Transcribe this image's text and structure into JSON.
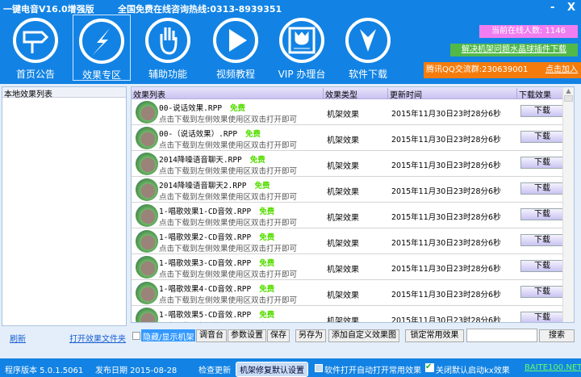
{
  "title": "一键电音V16.0增强版",
  "hotline": "全国免费在线咨询热线:0313-8939351",
  "window_controls": {
    "minimize": "-",
    "close": "X"
  },
  "nav": [
    {
      "label": "首页公告",
      "icon": "signpost-icon"
    },
    {
      "label": "效果专区",
      "icon": "lightning-icon"
    },
    {
      "label": "辅助功能",
      "icon": "hand-icon"
    },
    {
      "label": "视频教程",
      "icon": "play-icon"
    },
    {
      "label": "VIP 办理台",
      "icon": "tulip-icon"
    },
    {
      "label": "软件下载",
      "icon": "download-arrow-icon"
    }
  ],
  "online": "当前在线人数: 1146",
  "plugin_link": "解决机架问题水晶球插件下载",
  "qq_group": "腾讯QQ交流群:230639001",
  "join": "点击加入",
  "left": {
    "header": "本地效果列表",
    "refresh": "刷新",
    "open_folder": "打开效果文件夹"
  },
  "list": {
    "columns": [
      "效果列表",
      "效果类型",
      "更新时间",
      "下载效果"
    ],
    "rows": [
      {
        "name": "00-说话效果.RPP",
        "badge": "免费",
        "desc": "点击下载到左侧效果使用区双击打开即可",
        "type": "机架效果",
        "time": "2015年11月30日23时28分6秒",
        "action": "下载"
      },
      {
        "name": "00-（说话效果）.RPP",
        "badge": "免费",
        "desc": "点击下载到左侧效果使用区双击打开即可",
        "type": "机架效果",
        "time": "2015年11月30日23时28分6秒",
        "action": "下载"
      },
      {
        "name": "2014降噪语音聊天.RPP",
        "badge": "免费",
        "desc": "点击下载到左侧效果使用区双击打开即可",
        "type": "机架效果",
        "time": "2015年11月30日23时28分6秒",
        "action": "下载"
      },
      {
        "name": "2014降噪语音聊天2.RPP",
        "badge": "免费",
        "desc": "点击下载到左侧效果使用区双击打开即可",
        "type": "机架效果",
        "time": "2015年11月30日23时28分6秒",
        "action": "下载"
      },
      {
        "name": "1-唱歌效果1-CD音效.RPP",
        "badge": "免费",
        "desc": "点击下载到左侧效果使用区双击打开即可",
        "type": "机架效果",
        "time": "2015年11月30日23时28分6秒",
        "action": "下载"
      },
      {
        "name": "1-唱歌效果2-CD音效.RPP",
        "badge": "免费",
        "desc": "点击下载到左侧效果使用区双击打开即可",
        "type": "机架效果",
        "time": "2015年11月30日23时28分6秒",
        "action": "下载"
      },
      {
        "name": "1-唱歌效果3-CD音效.RPP",
        "badge": "免费",
        "desc": "点击下载到左侧效果使用区双击打开即可",
        "type": "机架效果",
        "time": "2015年11月30日23时28分6秒",
        "action": "下载"
      },
      {
        "name": "1-唱歌效果4-CD音效.RPP",
        "badge": "免费",
        "desc": "点击下载到左侧效果使用区双击打开即可",
        "type": "机架效果",
        "time": "2015年11月30日23时28分6秒",
        "action": "下载"
      },
      {
        "name": "1-唱歌效果5-CD音效.RPP",
        "badge": "免费",
        "desc": "点击下载到左侧效果使用区双击打开即可",
        "type": "机架效果",
        "time": "2015年11月30日23时28分6秒",
        "action": "下载"
      }
    ]
  },
  "toolbar": {
    "toggle_rack": "隐藏/显示机架",
    "mixer": "调音台",
    "params": "参数设置",
    "save": "保存",
    "save_as": "另存为",
    "add_custom": "添加自定义效果图",
    "lock_common": "锁定常用效果",
    "search_value": "",
    "search": "搜索"
  },
  "status": {
    "version": "程序版本 5.0.1.5061",
    "date": "发布日期 2015-08-28",
    "check_update": "检查更新",
    "repair": "机架修复默认设置",
    "auto_open": "软件打开自动打开常用效果",
    "auto_open_checked": false,
    "close_kx": "关闭默认启动kx效果",
    "close_kx_checked": true,
    "site": "BAITE100.NET"
  }
}
